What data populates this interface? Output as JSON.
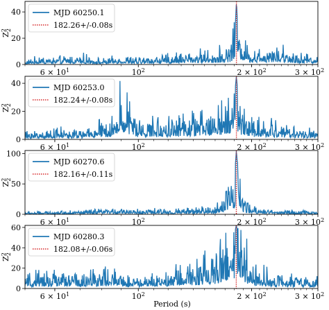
{
  "chart_data": {
    "type": "line",
    "xlabel": "Period (s)",
    "ylabel": "Z",
    "ylabel_sub": "2",
    "ylabel_sup": "2",
    "xscale": "log",
    "xlim": [
      50,
      300
    ],
    "sharex": true,
    "legend_placement": "upper-left",
    "x_tick_labels": [
      {
        "value": 60,
        "base": "6 × 10",
        "exp": "1"
      },
      {
        "value": 100,
        "base": "10",
        "exp": "2"
      },
      {
        "value": 200,
        "base": "2 × 10",
        "exp": "2"
      },
      {
        "value": 300,
        "base": "3 × 10",
        "exp": "2"
      }
    ],
    "colors": {
      "series": "#1f77b4",
      "marker": "#d62728"
    },
    "panels": [
      {
        "series_name": "MJD 60250.1",
        "marker_label": "182.26+/-0.08s",
        "marker_period": 182.26,
        "ylim": [
          0,
          48
        ],
        "yticks": [
          0,
          20,
          40
        ],
        "approx_profile": [
          [
            50,
            2
          ],
          [
            55,
            5
          ],
          [
            60,
            4
          ],
          [
            70,
            6
          ],
          [
            80,
            3
          ],
          [
            90,
            5
          ],
          [
            100,
            4
          ],
          [
            120,
            6
          ],
          [
            140,
            8
          ],
          [
            160,
            8
          ],
          [
            175,
            12
          ],
          [
            178,
            18
          ],
          [
            181,
            30
          ],
          [
            182.3,
            48
          ],
          [
            184,
            22
          ],
          [
            188,
            22
          ],
          [
            192,
            14
          ],
          [
            200,
            10
          ],
          [
            230,
            12
          ],
          [
            260,
            8
          ],
          [
            300,
            5
          ]
        ]
      },
      {
        "series_name": "MJD 60253.0",
        "marker_label": "182.24+/-0.08s",
        "marker_period": 182.24,
        "ylim": [
          0,
          45
        ],
        "yticks": [
          0,
          20,
          40
        ],
        "approx_profile": [
          [
            50,
            4
          ],
          [
            60,
            6
          ],
          [
            70,
            5
          ],
          [
            80,
            10
          ],
          [
            85,
            12
          ],
          [
            88,
            15
          ],
          [
            90,
            37
          ],
          [
            92,
            25
          ],
          [
            100,
            10
          ],
          [
            120,
            12
          ],
          [
            140,
            14
          ],
          [
            160,
            18
          ],
          [
            170,
            20
          ],
          [
            175,
            22
          ],
          [
            178,
            25
          ],
          [
            180,
            30
          ],
          [
            182.2,
            45
          ],
          [
            185,
            25
          ],
          [
            190,
            20
          ],
          [
            200,
            12
          ],
          [
            230,
            10
          ],
          [
            260,
            7
          ],
          [
            300,
            5
          ]
        ]
      },
      {
        "series_name": "MJD 60270.6",
        "marker_label": "182.16+/-0.11s",
        "marker_period": 182.16,
        "ylim": [
          0,
          105
        ],
        "yticks": [
          0,
          50,
          100
        ],
        "approx_profile": [
          [
            50,
            3
          ],
          [
            60,
            4
          ],
          [
            80,
            6
          ],
          [
            90,
            8
          ],
          [
            100,
            6
          ],
          [
            130,
            7
          ],
          [
            160,
            10
          ],
          [
            170,
            30
          ],
          [
            175,
            68
          ],
          [
            178,
            40
          ],
          [
            181,
            80
          ],
          [
            182.2,
            105
          ],
          [
            184,
            70
          ],
          [
            188,
            30
          ],
          [
            192,
            20
          ],
          [
            200,
            10
          ],
          [
            230,
            6
          ],
          [
            300,
            4
          ]
        ]
      },
      {
        "series_name": "MJD 60280.3",
        "marker_label": "182.08+/-0.06s",
        "marker_period": 182.08,
        "ylim": [
          0,
          62
        ],
        "yticks": [
          0,
          20,
          40,
          60
        ],
        "approx_profile": [
          [
            50,
            10
          ],
          [
            60,
            14
          ],
          [
            70,
            12
          ],
          [
            80,
            15
          ],
          [
            90,
            12
          ],
          [
            100,
            10
          ],
          [
            120,
            14
          ],
          [
            140,
            20
          ],
          [
            160,
            28
          ],
          [
            170,
            40
          ],
          [
            175,
            52
          ],
          [
            178,
            45
          ],
          [
            182.1,
            62
          ],
          [
            185,
            50
          ],
          [
            188,
            58
          ],
          [
            192,
            35
          ],
          [
            200,
            20
          ],
          [
            230,
            12
          ],
          [
            260,
            10
          ],
          [
            300,
            8
          ]
        ]
      }
    ]
  }
}
